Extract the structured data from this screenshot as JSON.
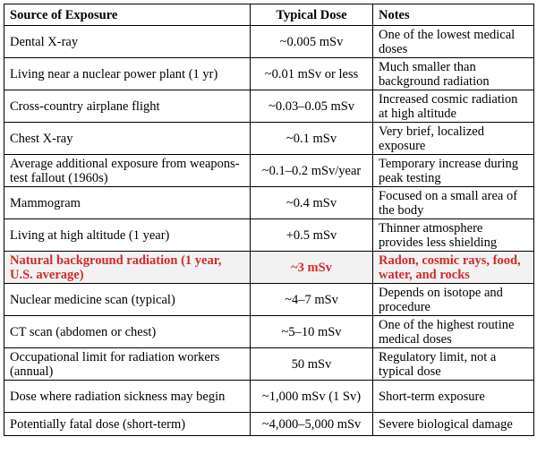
{
  "table": {
    "headers": [
      "Source of Exposure",
      "Typical Dose",
      "Notes"
    ],
    "rows": [
      {
        "source": "Dental X-ray",
        "dose": "~0.005 mSv",
        "notes": "One of the lowest medical doses"
      },
      {
        "source": "Living near a nuclear power plant (1 yr)",
        "dose": "~0.01 mSv or less",
        "notes": "Much smaller than background radiation"
      },
      {
        "source": "Cross-country airplane flight",
        "dose": "~0.03–0.05 mSv",
        "notes": "Increased cosmic radiation at high altitude"
      },
      {
        "source": "Chest X-ray",
        "dose": "~0.1 mSv",
        "notes": "Very brief, localized exposure"
      },
      {
        "source": "Average additional exposure from weapons-test fallout (1960s)",
        "dose": "~0.1–0.2 mSv/year",
        "notes": "Temporary increase during peak testing"
      },
      {
        "source": "Mammogram",
        "dose": "~0.4 mSv",
        "notes": "Focused on a small area of the body"
      },
      {
        "source": "Living at high altitude (1 year)",
        "dose": "+0.5 mSv",
        "notes": "Thinner atmosphere provides less shielding"
      },
      {
        "source": "Natural background radiation (1 year, U.S. average)",
        "dose": "~3 mSv",
        "notes": "Radon, cosmic rays, food, water, and rocks"
      },
      {
        "source": "Nuclear medicine scan (typical)",
        "dose": "~4–7 mSv",
        "notes": "Depends on isotope and procedure"
      },
      {
        "source": "CT scan (abdomen or chest)",
        "dose": "~5–10 mSv",
        "notes": "One of the highest routine medical doses"
      },
      {
        "source": "Occupational limit for radiation workers (annual)",
        "dose": "50 mSv",
        "notes": "Regulatory limit, not a typical dose"
      },
      {
        "source": "Dose where radiation sickness may begin",
        "dose": "~1,000 mSv (1 Sv)",
        "notes": "Short-term exposure"
      },
      {
        "source": "Potentially fatal dose (short-term)",
        "dose": "~4,000–5,000 mSv",
        "notes": "Severe biological damage"
      }
    ]
  },
  "colors": {
    "highlight_text": "#d32a2a",
    "highlight_background": "#f2f2f2"
  }
}
